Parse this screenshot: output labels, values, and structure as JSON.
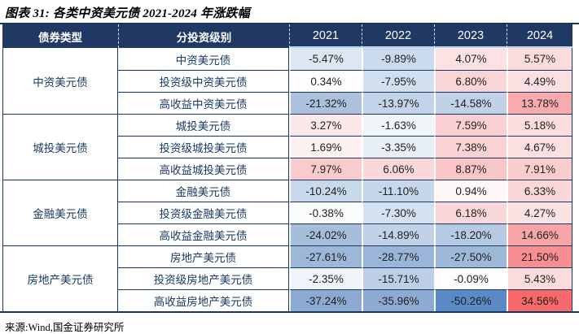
{
  "title": "图表 31: 各类中资美元债 2021-2024 年涨跌幅",
  "source": "来源:Wind,国金证券研究所",
  "colors": {
    "header_bg": "#1F3864",
    "header_text": "#FFFFFF",
    "border": "#17375E",
    "label_text": "#17375E",
    "value_text": "#1F1F1F",
    "positive_max": "#F8696B",
    "negative_max": "#5A8AC6",
    "neutral": "#FFFFFF"
  },
  "table": {
    "headers": [
      "债券类型",
      "分投资级别",
      "2021",
      "2022",
      "2023",
      "2024"
    ],
    "groups": [
      {
        "type": "中资美元债",
        "rows": [
          {
            "label": "中资美元债",
            "values": [
              "-5.47%",
              "-9.89%",
              "4.07%",
              "5.57%"
            ],
            "bg": [
              "#DCE7F2",
              "#CBDAED",
              "#FCE2E2",
              "#FBDCDD"
            ]
          },
          {
            "label": "投资级中资美元债",
            "values": [
              "0.34%",
              "-7.95%",
              "6.80%",
              "4.49%"
            ],
            "bg": [
              "#FEFCFC",
              "#D2DFEF",
              "#FAD5D6",
              "#FBE0E1"
            ]
          },
          {
            "label": "高收益中资美元债",
            "values": [
              "-21.32%",
              "-13.97%",
              "-14.58%",
              "13.78%"
            ],
            "bg": [
              "#ACC1DE",
              "#C3D3E9",
              "#C1D2E8",
              "#F8AAAD"
            ]
          }
        ]
      },
      {
        "type": "城投美元债",
        "rows": [
          {
            "label": "城投美元债",
            "values": [
              "3.27%",
              "-1.63%",
              "7.59%",
              "5.18%"
            ],
            "bg": [
              "#FCE8E8",
              "#F2F6FB",
              "#FACFD1",
              "#FBDDDE"
            ]
          },
          {
            "label": "投资级城投美元债",
            "values": [
              "1.69%",
              "-3.35%",
              "7.38%",
              "4.67%"
            ],
            "bg": [
              "#FDF1F1",
              "#E8EFF7",
              "#FAD2D3",
              "#FBE0E1"
            ]
          },
          {
            "label": "高收益城投美元债",
            "values": [
              "7.97%",
              "6.06%",
              "8.87%",
              "7.91%"
            ],
            "bg": [
              "#F9CBCD",
              "#FAD7D8",
              "#F9C6C8",
              "#F9CCCE"
            ]
          }
        ]
      },
      {
        "type": "金融美元债",
        "rows": [
          {
            "label": "金融美元债",
            "values": [
              "-10.24%",
              "-11.10%",
              "0.94%",
              "6.33%"
            ],
            "bg": [
              "#C9D9EC",
              "#C6D7EB",
              "#FEF7F7",
              "#FAD7D8"
            ]
          },
          {
            "label": "投资级金融美元债",
            "values": [
              "-0.38%",
              "-7.30%",
              "6.18%",
              "4.27%"
            ],
            "bg": [
              "#FBFCFE",
              "#D5E1F0",
              "#FAD8D9",
              "#FBE2E2"
            ]
          },
          {
            "label": "高收益金融美元债",
            "values": [
              "-24.02%",
              "-14.89%",
              "-18.20%",
              "14.66%"
            ],
            "bg": [
              "#A6BDDB",
              "#C0D1E8",
              "#B6CAE3",
              "#F8A5A8"
            ]
          }
        ]
      },
      {
        "type": "房地产美元债",
        "rows": [
          {
            "label": "房地产美元债",
            "values": [
              "-27.61%",
              "-28.77%",
              "-27.50%",
              "21.50%"
            ],
            "bg": [
              "#9DB7D8",
              "#9AB5D7",
              "#9EB8D9",
              "#F78E91"
            ]
          },
          {
            "label": "投资级房地产美元债",
            "values": [
              "-2.35%",
              "-15.71%",
              "-0.09%",
              "5.43%"
            ],
            "bg": [
              "#EFF4FA",
              "#BDCFE6",
              "#FDFDFF",
              "#FBDCDD"
            ]
          },
          {
            "label": "高收益房地产美元债",
            "values": [
              "-37.24%",
              "-35.96%",
              "-50.26%",
              "34.56%"
            ],
            "bg": [
              "#8BA9D1",
              "#8DABD2",
              "#5A8AC6",
              "#F8696B"
            ]
          }
        ]
      }
    ]
  },
  "chart_data": {
    "type": "table",
    "title": "图表 31: 各类中资美元债 2021-2024 年涨跌幅",
    "units": "%",
    "columns": [
      "债券类型",
      "分投资级别",
      "2021",
      "2022",
      "2023",
      "2024"
    ],
    "rows": [
      [
        "中资美元债",
        "中资美元债",
        -5.47,
        -9.89,
        4.07,
        5.57
      ],
      [
        "中资美元债",
        "投资级中资美元债",
        0.34,
        -7.95,
        6.8,
        4.49
      ],
      [
        "中资美元债",
        "高收益中资美元债",
        -21.32,
        -13.97,
        -14.58,
        13.78
      ],
      [
        "城投美元债",
        "城投美元债",
        3.27,
        -1.63,
        7.59,
        5.18
      ],
      [
        "城投美元债",
        "投资级城投美元债",
        1.69,
        -3.35,
        7.38,
        4.67
      ],
      [
        "城投美元债",
        "高收益城投美元债",
        7.97,
        6.06,
        8.87,
        7.91
      ],
      [
        "金融美元债",
        "金融美元债",
        -10.24,
        -11.1,
        0.94,
        6.33
      ],
      [
        "金融美元债",
        "投资级金融美元债",
        -0.38,
        -7.3,
        6.18,
        4.27
      ],
      [
        "金融美元债",
        "高收益金融美元债",
        -24.02,
        -14.89,
        -18.2,
        14.66
      ],
      [
        "房地产美元债",
        "房地产美元债",
        -27.61,
        -28.77,
        -27.5,
        21.5
      ],
      [
        "房地产美元债",
        "投资级房地产美元债",
        -2.35,
        -15.71,
        -0.09,
        5.43
      ],
      [
        "房地产美元债",
        "高收益房地产美元债",
        -37.24,
        -35.96,
        -50.26,
        34.56
      ]
    ],
    "legend": "cell shading: red = positive return, blue = negative return, intensity by magnitude"
  }
}
